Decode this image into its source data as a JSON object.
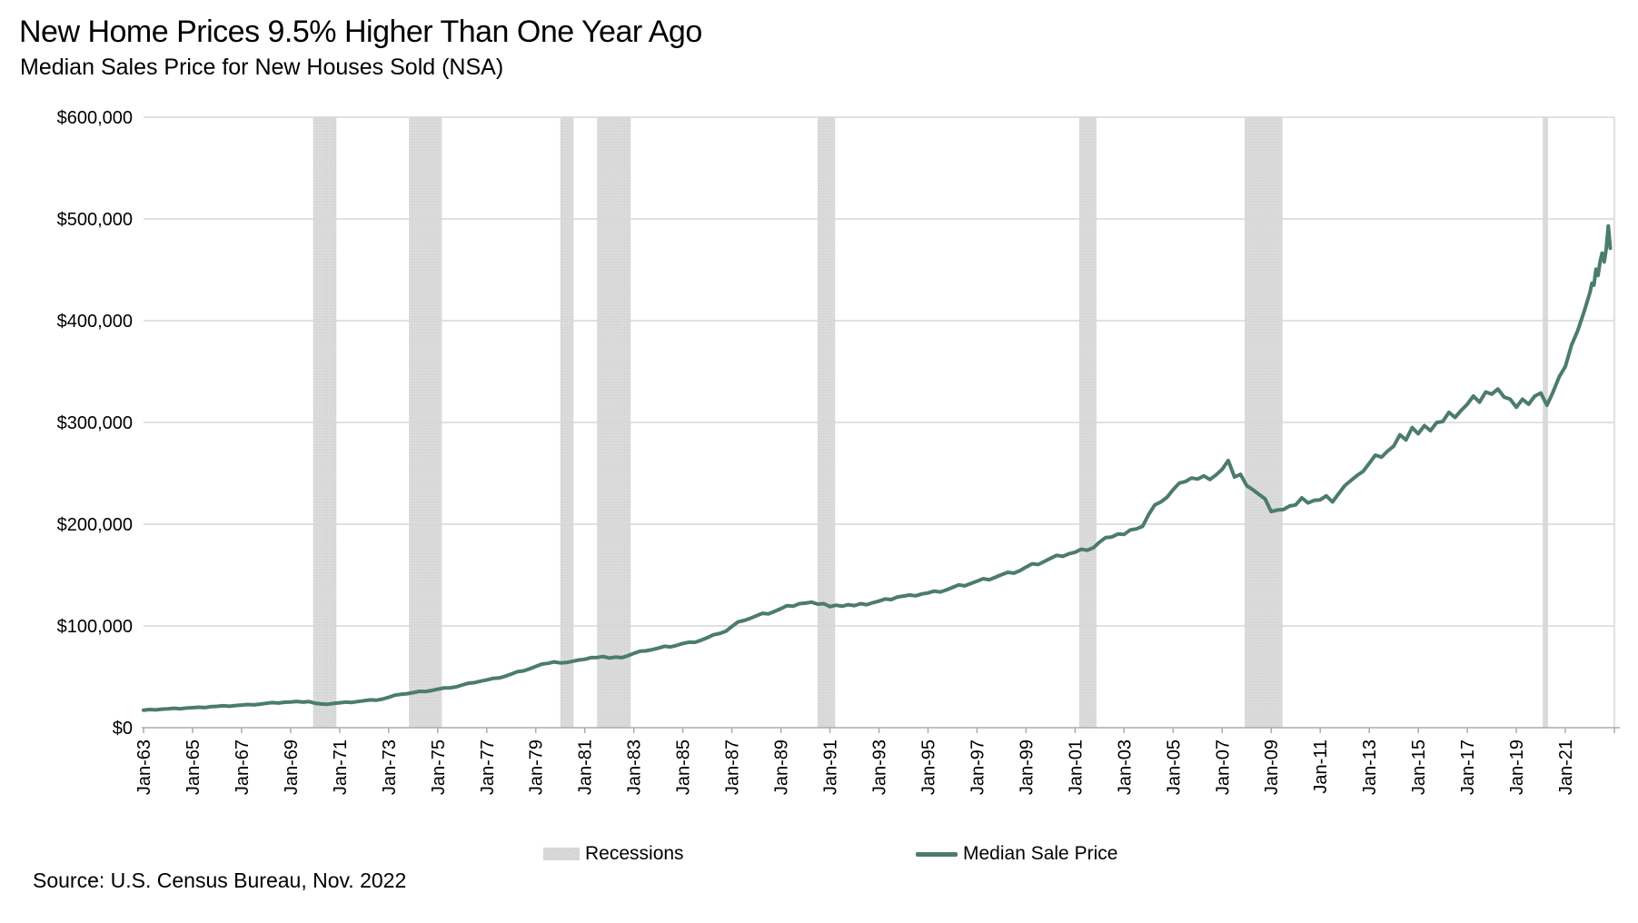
{
  "header": {
    "title": "New Home Prices 9.5% Higher Than One Year Ago",
    "subtitle": "Median Sales Price for New Houses Sold (NSA)"
  },
  "source": {
    "text": "Source: U.S. Census Bureau, Nov. 2022"
  },
  "legend": {
    "recessions_label": "Recessions",
    "price_label": "Median Sale Price"
  },
  "colors": {
    "line": "#4b7c6c",
    "recession_band": "#dcdcdc",
    "recession_band_dot": "#cbcbcb",
    "gridline": "#d7d7d7",
    "axis": "#ababab",
    "text": "#000000"
  },
  "chart_data": {
    "type": "line",
    "title": "New Home Prices 9.5% Higher Than One Year Ago",
    "subtitle": "Median Sales Price for New Houses Sold (NSA)",
    "yoy_change_pct": 9.5,
    "last_point": {
      "date": "Nov-2022",
      "value": 471200
    },
    "y_axis": {
      "range": [
        0,
        600000
      ],
      "gridlines": true,
      "ticks": [
        {
          "label": "$0",
          "value": 0
        },
        {
          "label": "$100,000",
          "value": 100000
        },
        {
          "label": "$200,000",
          "value": 200000
        },
        {
          "label": "$300,000",
          "value": 300000
        },
        {
          "label": "$400,000",
          "value": 400000
        },
        {
          "label": "$500,000",
          "value": 500000
        },
        {
          "label": "$600,000",
          "value": 600000
        }
      ]
    },
    "x_axis": {
      "range_years": [
        1963,
        2023
      ],
      "tick_years": [
        1963,
        1965,
        1967,
        1969,
        1971,
        1973,
        1975,
        1977,
        1979,
        1981,
        1983,
        1985,
        1987,
        1989,
        1991,
        1993,
        1995,
        1997,
        1999,
        2001,
        2003,
        2005,
        2007,
        2009,
        2011,
        2013,
        2015,
        2017,
        2019,
        2021
      ],
      "tick_labels": [
        "Jan-63",
        "Jan-65",
        "Jan-67",
        "Jan-69",
        "Jan-71",
        "Jan-73",
        "Jan-75",
        "Jan-77",
        "Jan-79",
        "Jan-81",
        "Jan-83",
        "Jan-85",
        "Jan-87",
        "Jan-89",
        "Jan-91",
        "Jan-93",
        "Jan-95",
        "Jan-97",
        "Jan-99",
        "Jan-01",
        "Jan-03",
        "Jan-05",
        "Jan-07",
        "Jan-09",
        "Jan-11",
        "Jan-13",
        "Jan-15",
        "Jan-17",
        "Jan-19",
        "Jan-21"
      ],
      "unlabeled_final_tick_year": 2023
    },
    "recessions": [
      {
        "name": "1969-70 recession",
        "start": 1969.92,
        "end": 1970.87
      },
      {
        "name": "1973-75 recession",
        "start": 1973.83,
        "end": 1975.17
      },
      {
        "name": "1980 recession",
        "start": 1980.0,
        "end": 1980.54
      },
      {
        "name": "1981-82 recession",
        "start": 1981.5,
        "end": 1982.87
      },
      {
        "name": "1990-91 recession",
        "start": 1990.5,
        "end": 1991.21
      },
      {
        "name": "2001 recession",
        "start": 2001.17,
        "end": 2001.87
      },
      {
        "name": "2007-09 recession",
        "start": 2007.92,
        "end": 2009.46
      },
      {
        "name": "2020 recession",
        "start": 2020.08,
        "end": 2020.29
      }
    ],
    "series": {
      "name": "Median Sale Price",
      "cadence": "quarterly",
      "start_year": 1963,
      "quarterly_values": [
        17200,
        17900,
        17500,
        18200,
        18500,
        19100,
        18600,
        19300,
        19600,
        20100,
        19700,
        20600,
        21000,
        21500,
        21100,
        21800,
        22200,
        22800,
        22400,
        23100,
        23900,
        24600,
        24200,
        25000,
        25300,
        25800,
        25100,
        25600,
        24000,
        23300,
        23000,
        23800,
        24500,
        25200,
        24800,
        25700,
        26500,
        27300,
        27000,
        28100,
        29800,
        32000,
        32800,
        33400,
        34500,
        35700,
        35500,
        36500,
        37800,
        39000,
        39200,
        40100,
        42000,
        43700,
        44300,
        45700,
        47000,
        48400,
        48800,
        50500,
        52700,
        55000,
        55800,
        57900,
        60200,
        62500,
        63200,
        64600,
        63700,
        64000,
        65300,
        66500,
        67200,
        68800,
        69000,
        69900,
        68500,
        69400,
        68800,
        70600,
        73000,
        75100,
        75500,
        76700,
        78200,
        80000,
        79400,
        80900,
        82800,
        84000,
        83900,
        86000,
        88500,
        91300,
        92500,
        94700,
        99500,
        103900,
        105400,
        107400,
        110000,
        112400,
        111900,
        114400,
        117000,
        119900,
        119400,
        121900,
        122400,
        123400,
        121400,
        121900,
        119000,
        120400,
        119400,
        120900,
        120000,
        121900,
        120900,
        122900,
        124400,
        126400,
        125900,
        128400,
        129400,
        130400,
        129600,
        131400,
        132400,
        134200,
        133400,
        135400,
        137900,
        140400,
        139400,
        141700,
        143900,
        146400,
        145400,
        147900,
        150400,
        152700,
        151900,
        154400,
        157900,
        161100,
        160400,
        163400,
        166400,
        169400,
        168400,
        170900,
        172400,
        175400,
        174400,
        176900,
        182400,
        186900,
        187400,
        190400,
        189900,
        194400,
        195400,
        197900,
        209400,
        218900,
        221900,
        226400,
        233900,
        240400,
        241900,
        245400,
        244400,
        247400,
        243900,
        248400,
        253900,
        262600,
        246400,
        248900,
        237900,
        233900,
        229400,
        224900,
        212400,
        213900,
        214400,
        217900,
        218900,
        225900,
        220900,
        223400,
        223900,
        227900,
        221900,
        229900,
        237900,
        242900,
        247900,
        251900,
        259900,
        267900,
        265900,
        271900,
        276900,
        287900,
        282900,
        294900,
        288900,
        296900,
        291900,
        299900,
        300900,
        309900,
        304900,
        311900,
        317900,
        325900,
        319900,
        329900,
        327900,
        332900,
        324900,
        322900,
        314900,
        322900,
        317900,
        325900,
        328900,
        316900,
        329900,
        344900,
        354900,
        375900,
        389900,
        407900
      ],
      "monthly_tail": {
        "start": "Jan-2022",
        "values": [
          427400,
          436700,
          435000,
          450600,
          444500,
          458300,
          466300,
          457800,
          470600,
          493000,
          471200
        ]
      }
    }
  }
}
